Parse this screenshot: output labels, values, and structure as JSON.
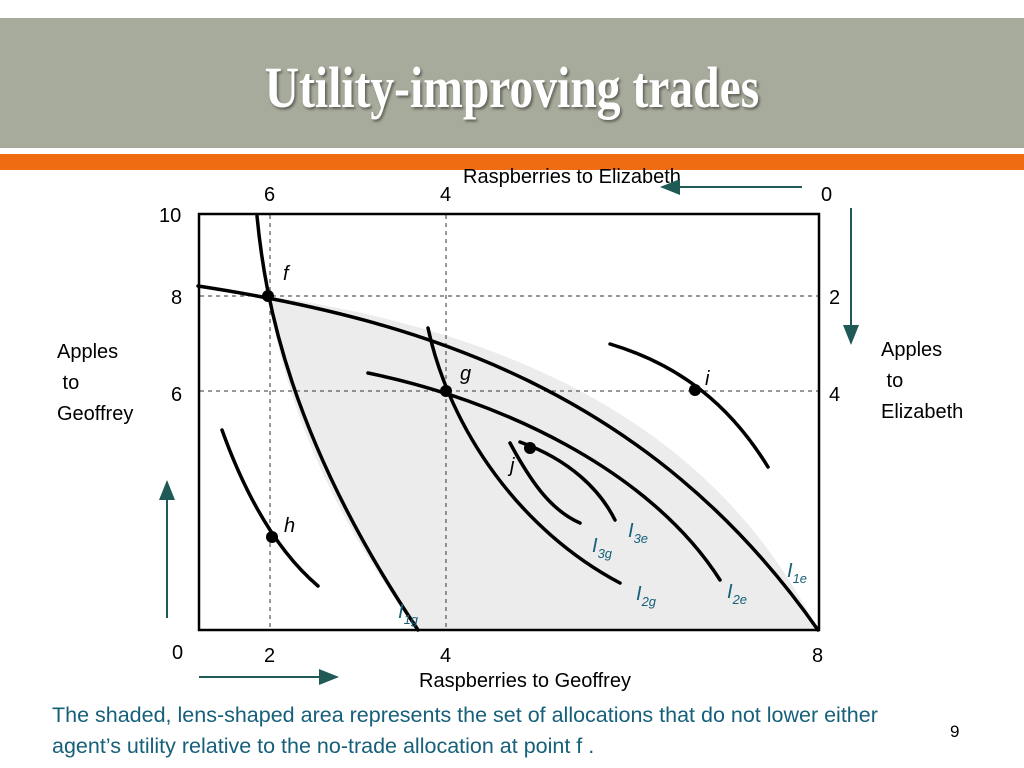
{
  "slide": {
    "title": "Utility-improving trades",
    "caption": "The shaded, lens-shaped area represents the set of allocations that do not lower either agent’s utility relative to the no-trade allocation at point f .",
    "page_number": "9",
    "colors": {
      "title_bar": "#a7ab9b",
      "accent_bar": "#ef6c12",
      "lens_fill": "#ececec",
      "label_teal": "#17607a",
      "arrow_teal": "#1f5a57"
    }
  },
  "diagram": {
    "top_axis_label": "Raspberries to Elizabeth",
    "bottom_axis_label": "Raspberries to Geoffrey",
    "left_axis_label": [
      "Apples",
      " to",
      "Geoffrey"
    ],
    "right_axis_label": [
      "Apples",
      " to",
      "Elizabeth"
    ],
    "bottom_ticks": [
      "0",
      "2",
      "4",
      "8"
    ],
    "left_ticks": [
      "10",
      "8",
      "6"
    ],
    "top_ticks": [
      "6",
      "4",
      "0"
    ],
    "right_ticks": [
      "2",
      "4"
    ],
    "points": [
      "f",
      "g",
      "h",
      "i",
      "j"
    ],
    "curves": {
      "I1g": {
        "base": "I",
        "sub": "1g"
      },
      "I2g": {
        "base": "I",
        "sub": "2g"
      },
      "I3g": {
        "base": "I",
        "sub": "3g"
      },
      "I1e": {
        "base": "I",
        "sub": "1e"
      },
      "I2e": {
        "base": "I",
        "sub": "2e"
      },
      "I3e": {
        "base": "I",
        "sub": "3e"
      }
    }
  }
}
